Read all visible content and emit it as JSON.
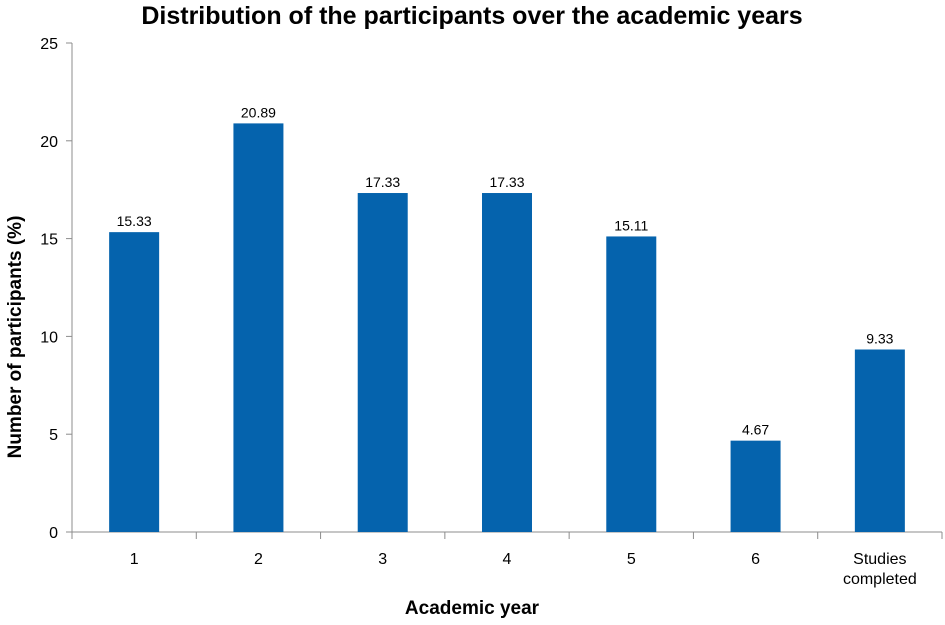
{
  "chart_data": {
    "type": "bar",
    "title": "Distribution of the participants over the academic years",
    "xlabel": "Academic year",
    "ylabel": "Number of participants (%)",
    "categories": [
      [
        "1"
      ],
      [
        "2"
      ],
      [
        "3"
      ],
      [
        "4"
      ],
      [
        "5"
      ],
      [
        "6"
      ],
      [
        "Studies",
        "completed"
      ]
    ],
    "values": [
      15.33,
      20.89,
      17.33,
      17.33,
      15.11,
      4.67,
      9.33
    ],
    "data_labels": [
      "15.33",
      "20.89",
      "17.33",
      "17.33",
      "15.11",
      "4.67",
      "9.33"
    ],
    "ylim": [
      0,
      25
    ],
    "yticks": [
      0,
      5,
      10,
      15,
      20,
      25
    ],
    "grid": false,
    "legend": "none",
    "colors": {
      "bar": "#0563ad",
      "axis": "#8c8c8c",
      "text": "#000000"
    }
  }
}
